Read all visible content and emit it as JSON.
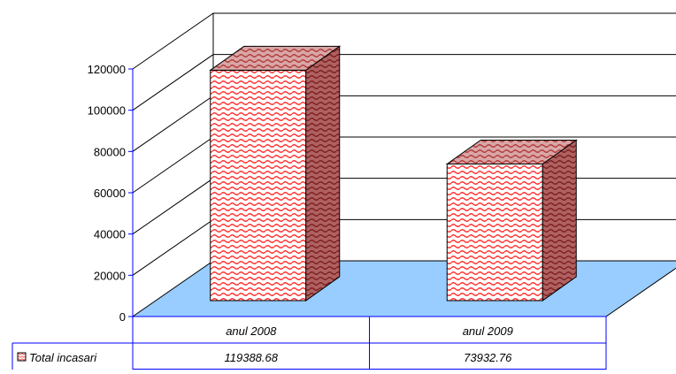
{
  "chart_data": {
    "type": "bar",
    "style": "3d",
    "categories": [
      "anul 2008",
      "anul 2009"
    ],
    "series": [
      {
        "name": "Total incasari",
        "values": [
          119388.68,
          73932.76
        ],
        "values_text": [
          "119388.68",
          "73932.76"
        ]
      }
    ],
    "ylim": [
      0,
      120000
    ],
    "yticks": [
      "0",
      "20000",
      "40000",
      "60000",
      "80000",
      "100000",
      "120000"
    ],
    "grid": true,
    "data_table": true,
    "colors": {
      "bar_front": "#ff3333",
      "bar_top": "#c06a6a",
      "bar_side": "#a03a3a",
      "floor": "#99ccff",
      "axis": "#0000ff",
      "grid": "#000000"
    }
  }
}
